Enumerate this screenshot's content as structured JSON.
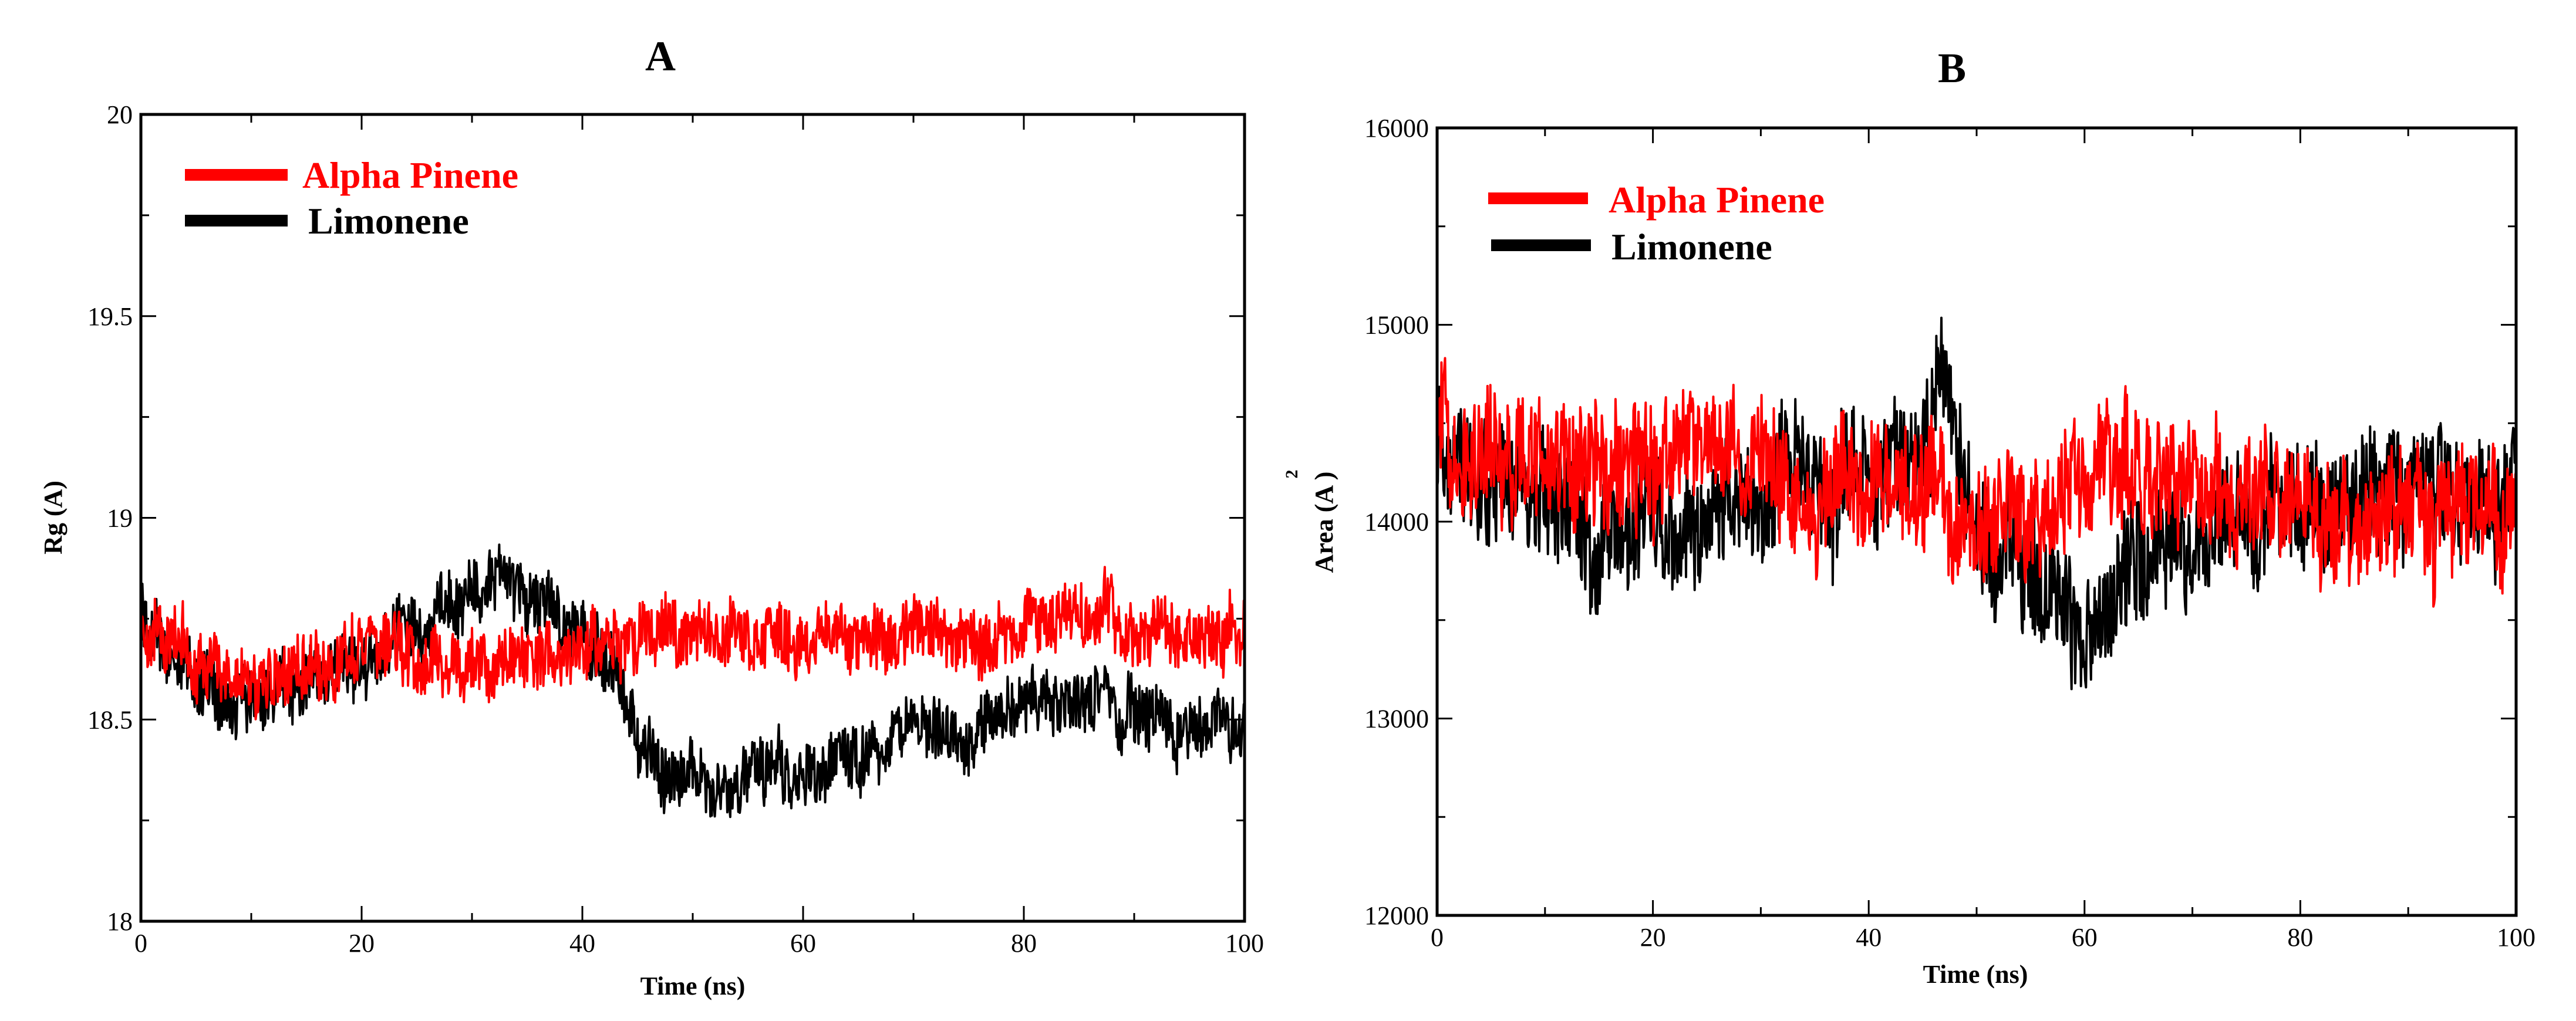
{
  "chart_data": [
    {
      "type": "line",
      "panel_label": "A",
      "xlabel": "Time (ns)",
      "ylabel": "Rg (A)",
      "xlim": [
        0,
        100
      ],
      "ylim": [
        18,
        20
      ],
      "x_ticks": [
        0,
        20,
        40,
        60,
        80,
        100
      ],
      "x_tick_labels": [
        "0",
        "20",
        "40",
        "60",
        "80",
        "100"
      ],
      "y_ticks": [
        18,
        18.5,
        19,
        19.5,
        20
      ],
      "y_tick_labels": [
        "18",
        "18.5",
        "19",
        "19.5",
        "20"
      ],
      "legend_position": "top-left",
      "series": [
        {
          "name": "Limonene",
          "color": "#000000",
          "x": [
            0,
            5,
            10,
            15,
            20,
            25,
            30,
            33,
            35,
            40,
            43,
            45,
            48,
            50,
            55,
            60,
            65,
            70,
            75,
            78,
            80,
            85,
            90,
            95,
            100
          ],
          "values": [
            18.75,
            18.6,
            18.55,
            18.6,
            18.65,
            18.72,
            18.82,
            18.85,
            18.8,
            18.7,
            18.6,
            18.45,
            18.38,
            18.36,
            18.35,
            18.37,
            18.4,
            18.45,
            18.45,
            18.5,
            18.55,
            18.55,
            18.52,
            18.5,
            18.5
          ],
          "noise_amplitude": 0.1
        },
        {
          "name": "Alpha Pinene",
          "color": "#ff0000",
          "x": [
            0,
            5,
            10,
            15,
            20,
            25,
            30,
            35,
            40,
            45,
            50,
            55,
            60,
            65,
            70,
            75,
            80,
            85,
            90,
            95,
            100
          ],
          "values": [
            18.75,
            18.65,
            18.6,
            18.63,
            18.68,
            18.66,
            18.62,
            18.65,
            18.68,
            18.7,
            18.72,
            18.7,
            18.68,
            18.7,
            18.72,
            18.7,
            18.73,
            18.78,
            18.75,
            18.72,
            18.7
          ],
          "noise_amplitude": 0.1
        }
      ]
    },
    {
      "type": "line",
      "panel_label": "B",
      "xlabel": "Time (ns)",
      "ylabel": "Area (A )",
      "ylabel_superscript": "2",
      "xlim": [
        0,
        100
      ],
      "ylim": [
        12000,
        16000
      ],
      "x_ticks": [
        0,
        20,
        40,
        60,
        80,
        100
      ],
      "x_tick_labels": [
        "0",
        "20",
        "40",
        "60",
        "80",
        "100"
      ],
      "y_ticks": [
        12000,
        13000,
        14000,
        15000,
        16000
      ],
      "y_tick_labels": [
        "12000",
        "13000",
        "14000",
        "15000",
        "16000"
      ],
      "legend_position": "top-left",
      "series": [
        {
          "name": "Limonene",
          "color": "#000000",
          "x": [
            0,
            5,
            10,
            15,
            20,
            25,
            30,
            35,
            40,
            45,
            47,
            50,
            55,
            60,
            62,
            65,
            70,
            75,
            80,
            85,
            90,
            95,
            100
          ],
          "values": [
            14500,
            14200,
            14100,
            13800,
            14000,
            14000,
            14100,
            14200,
            14200,
            14400,
            14700,
            13900,
            13700,
            13500,
            13550,
            13700,
            13850,
            14000,
            14050,
            14150,
            14200,
            14100,
            14150
          ],
          "noise_amplitude": 380
        },
        {
          "name": "Alpha Pinene",
          "color": "#ff0000",
          "x": [
            0,
            5,
            10,
            15,
            20,
            25,
            30,
            35,
            40,
            45,
            50,
            55,
            60,
            65,
            70,
            75,
            80,
            85,
            90,
            95,
            100
          ],
          "values": [
            14500,
            14400,
            14300,
            14200,
            14300,
            14350,
            14300,
            14200,
            14150,
            14100,
            14000,
            14050,
            14200,
            14300,
            14250,
            14100,
            14050,
            13950,
            14000,
            14050,
            14050
          ],
          "noise_amplitude": 380
        }
      ]
    }
  ]
}
